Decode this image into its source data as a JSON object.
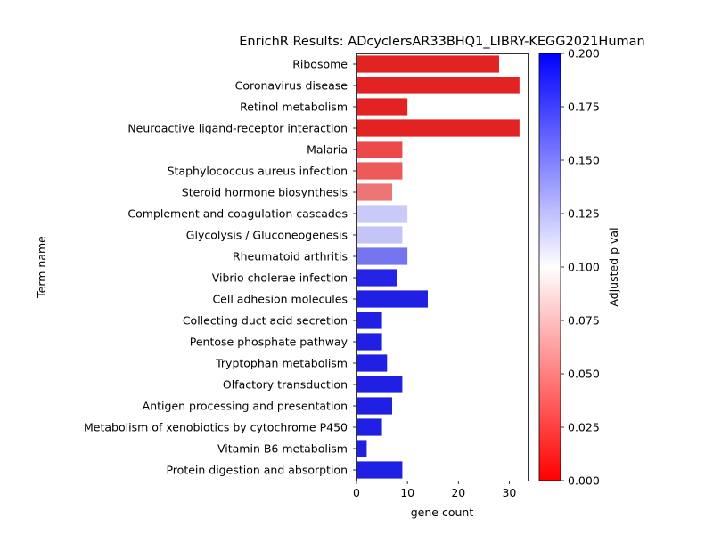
{
  "chart_data": {
    "type": "bar",
    "orientation": "horizontal",
    "title": "EnrichR Results: ADcyclersAR33BHQ1_LIBRY-KEGG2021Human",
    "xlabel": "gene count",
    "ylabel": "Term name",
    "xlim": [
      0,
      33.6
    ],
    "xticks": [
      0,
      10,
      20,
      30
    ],
    "grid": false,
    "categories": [
      "Ribosome",
      "Coronavirus disease",
      "Retinol metabolism",
      "Neuroactive ligand-receptor interaction",
      "Malaria",
      "Staphylococcus aureus infection",
      "Steroid hormone biosynthesis",
      "Complement and coagulation cascades",
      "Glycolysis / Gluconeogenesis",
      "Rheumatoid arthritis",
      "Vibrio cholerae infection",
      "Cell adhesion molecules",
      "Collecting duct acid secretion",
      "Pentose phosphate pathway",
      "Tryptophan metabolism",
      "Olfactory transduction",
      "Antigen processing and presentation",
      "Metabolism of xenobiotics by cytochrome P450",
      "Vitamin B6 metabolism",
      "Protein digestion and absorption"
    ],
    "values": [
      28,
      32,
      10,
      32,
      9,
      9,
      7,
      10,
      9,
      10,
      8,
      14,
      5,
      5,
      6,
      9,
      7,
      5,
      2,
      9
    ],
    "bar_colors": [
      "#e32222",
      "#e32222",
      "#e32222",
      "#e32222",
      "#ec4a4a",
      "#ec5a5a",
      "#ee7575",
      "#cacaf9",
      "#c4c4f7",
      "#7575ef",
      "#2424e6",
      "#2020e4",
      "#2020e4",
      "#2020e4",
      "#2020e4",
      "#2020e4",
      "#2020e4",
      "#2020e4",
      "#2020e4",
      "#2020e4"
    ],
    "colorbar": {
      "label": "Adjusted p val",
      "min": 0.0,
      "max": 0.2,
      "colormap": [
        "#ff0000",
        "#ffffff",
        "#0000ff"
      ],
      "ticks": [
        "0.000",
        "0.025",
        "0.050",
        "0.075",
        "0.100",
        "0.125",
        "0.150",
        "0.175",
        "0.200"
      ]
    }
  }
}
